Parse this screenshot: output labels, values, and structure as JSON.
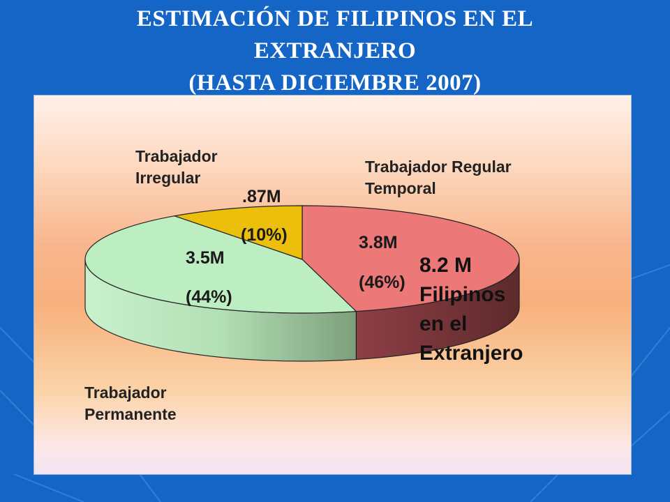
{
  "title": {
    "line1": "ESTIMACIÓN DE FILIPINOS EN EL",
    "line2": "EXTRANJERO",
    "line3": "(HASTA DICIEMBRE 2007)"
  },
  "chart_data": {
    "type": "pie",
    "style": "3d",
    "slices": [
      {
        "category": "Trabajador Regular Temporal",
        "value_label": "3.8M",
        "percent_label": "(46%)",
        "percent": 46,
        "color": "#ec7878",
        "side_color": "#7a2e34"
      },
      {
        "category": "Trabajador Permanente",
        "value_label": "3.5M",
        "percent_label": "(44%)",
        "percent": 44,
        "color": "#bdeec2",
        "side_color": "#7fa982"
      },
      {
        "category": "Trabajador Irregular",
        "value_label": ".87M",
        "percent_label": "(10%)",
        "percent": 10,
        "color": "#ecbf0c",
        "side_color": "#b38f08"
      }
    ],
    "total": {
      "line1": "8.2 M",
      "line2": "Filipinos",
      "line3": "en el",
      "line4": "Extranjero"
    }
  },
  "labels": {
    "regular_line1": "Trabajador Regular",
    "regular_line2": "Temporal",
    "irregular_line1": "Trabajador",
    "irregular_line2": "Irregular",
    "permanente_line1": "Trabajador",
    "permanente_line2": "Permanente"
  }
}
